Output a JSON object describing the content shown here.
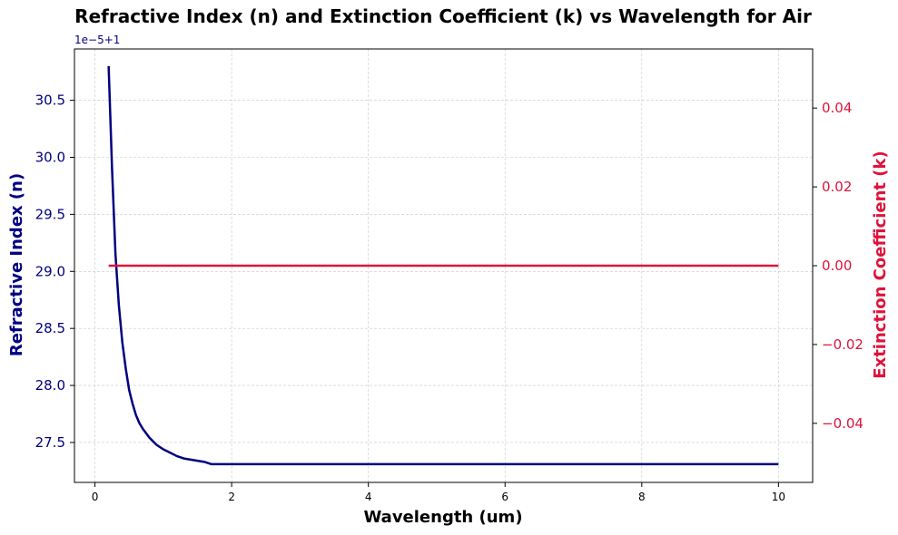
{
  "chart_data": {
    "type": "line",
    "title": "Refractive Index (n) and Extinction Coefficient (k) vs Wavelength for Air",
    "xlabel": "Wavelength (um)",
    "ylabel_left": "Refractive Index (n)",
    "ylabel_right": "Extinction Coefficient (k)",
    "left_offset_label": "1e−5+1",
    "xlim": [
      -0.3,
      10.5
    ],
    "ylim_left": [
      27.15,
      30.95
    ],
    "ylim_right": [
      -0.055,
      0.055
    ],
    "x_ticks": [
      0,
      2,
      4,
      6,
      8,
      10
    ],
    "x_tick_labels": [
      "0",
      "2",
      "4",
      "6",
      "8",
      "10"
    ],
    "left_ticks": [
      27.5,
      28.0,
      28.5,
      29.0,
      29.5,
      30.0,
      30.5
    ],
    "left_tick_labels": [
      "27.5",
      "28.0",
      "28.5",
      "29.0",
      "29.5",
      "30.0",
      "30.5"
    ],
    "right_ticks": [
      -0.04,
      -0.02,
      0.0,
      0.02,
      0.04
    ],
    "right_tick_labels": [
      "−0.04",
      "−0.02",
      "0.00",
      "0.02",
      "0.04"
    ],
    "grid": true,
    "colors": {
      "n": "#000080",
      "k": "#dc143c",
      "grid": "#c8c8c8"
    },
    "series": [
      {
        "axis": "left",
        "x": [
          0.2,
          0.25,
          0.3,
          0.35,
          0.4,
          0.45,
          0.5,
          0.55,
          0.6,
          0.65,
          0.7,
          0.8,
          0.9,
          1.0,
          1.1,
          1.2,
          1.3,
          1.4,
          1.5,
          1.6,
          1.7,
          2.0,
          3.0,
          4.0,
          5.0,
          6.0,
          7.0,
          8.0,
          9.0,
          10.0
        ],
        "values": [
          30.8,
          29.9,
          29.15,
          28.7,
          28.38,
          28.15,
          27.96,
          27.84,
          27.74,
          27.67,
          27.62,
          27.54,
          27.48,
          27.44,
          27.41,
          27.38,
          27.36,
          27.35,
          27.34,
          27.33,
          27.31,
          27.31,
          27.31,
          27.31,
          27.31,
          27.31,
          27.31,
          27.31,
          27.31,
          27.31
        ]
      },
      {
        "axis": "right",
        "x": [
          0.2,
          10.0
        ],
        "values": [
          0.0,
          0.0
        ]
      }
    ]
  }
}
